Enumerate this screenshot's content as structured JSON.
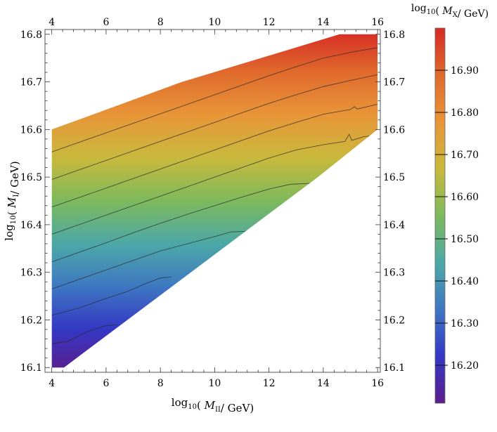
{
  "chart_data": {
    "type": "heatmap",
    "title": "",
    "xlabel": {
      "pre": "log",
      "sub1": "10",
      "mid": "(",
      "var": "M",
      "sub2": "II",
      "post": "/ GeV)"
    },
    "ylabel": {
      "pre": "log",
      "sub1": "10",
      "mid": "(",
      "var": "M",
      "sub2": "I",
      "post": "/ GeV)"
    },
    "colorbar_title": {
      "pre": "log",
      "sub1": "10",
      "mid": "(",
      "var": "M",
      "sub2": "X",
      "post": "/ GeV)"
    },
    "xlim": [
      3.75,
      16.1
    ],
    "ylim": [
      16.09,
      16.81
    ],
    "x_ticks": [
      4,
      6,
      8,
      10,
      12,
      14,
      16
    ],
    "x_tick_labels": [
      "4",
      "6",
      "8",
      "10",
      "12",
      "14",
      "16"
    ],
    "y_ticks": [
      16.1,
      16.2,
      16.3,
      16.4,
      16.5,
      16.6,
      16.7,
      16.8
    ],
    "y_tick_labels": [
      "16.1",
      "16.2",
      "16.3",
      "16.4",
      "16.5",
      "16.6",
      "16.7",
      "16.8"
    ],
    "colorbar_range": [
      16.11,
      17.0
    ],
    "colorbar_ticks": [
      16.2,
      16.3,
      16.4,
      16.5,
      16.6,
      16.7,
      16.8,
      16.9
    ],
    "colorbar_tick_labels": [
      "16.20",
      "16.30",
      "16.40",
      "16.50",
      "16.60",
      "16.70",
      "16.80",
      "16.90"
    ],
    "colorscale": [
      "#5c1e8c",
      "#3437c4",
      "#3e78c2",
      "#4ca8a6",
      "#7db95c",
      "#c8b93c",
      "#e89538",
      "#e06a2c",
      "#d62a26"
    ],
    "region_polygon": [
      [
        4.0,
        16.1
      ],
      [
        4.45,
        16.1
      ],
      [
        13.8,
        16.5
      ],
      [
        16.0,
        16.6
      ],
      [
        16.0,
        16.8
      ],
      [
        14.6,
        16.8
      ],
      [
        8.8,
        16.7
      ],
      [
        4.0,
        16.6
      ]
    ],
    "contours": [
      [
        [
          4.0,
          16.15
        ],
        [
          4.6,
          16.155
        ],
        [
          5.3,
          16.175
        ],
        [
          5.9,
          16.187
        ],
        [
          6.4,
          16.19
        ]
      ],
      [
        [
          4.0,
          16.21
        ],
        [
          5.0,
          16.225
        ],
        [
          6.0,
          16.245
        ],
        [
          6.8,
          16.26
        ],
        [
          7.4,
          16.275
        ],
        [
          8.0,
          16.288
        ],
        [
          8.4,
          16.29
        ]
      ],
      [
        [
          4.0,
          16.265
        ],
        [
          5.0,
          16.285
        ],
        [
          6.0,
          16.305
        ],
        [
          7.0,
          16.325
        ],
        [
          8.0,
          16.345
        ],
        [
          9.0,
          16.36
        ],
        [
          10.0,
          16.375
        ],
        [
          10.6,
          16.385
        ],
        [
          11.2,
          16.386
        ]
      ],
      [
        [
          4.0,
          16.322
        ],
        [
          5.0,
          16.342
        ],
        [
          6.0,
          16.362
        ],
        [
          7.0,
          16.383
        ],
        [
          8.0,
          16.403
        ],
        [
          9.0,
          16.422
        ],
        [
          10.0,
          16.44
        ],
        [
          11.0,
          16.458
        ],
        [
          12.0,
          16.475
        ],
        [
          12.8,
          16.485
        ],
        [
          13.6,
          16.487
        ]
      ],
      [
        [
          4.0,
          16.38
        ],
        [
          5.0,
          16.4
        ],
        [
          6.0,
          16.42
        ],
        [
          7.0,
          16.44
        ],
        [
          8.0,
          16.46
        ],
        [
          9.0,
          16.48
        ],
        [
          10.0,
          16.5
        ],
        [
          11.0,
          16.52
        ],
        [
          12.0,
          16.54
        ],
        [
          13.0,
          16.557
        ],
        [
          14.0,
          16.568
        ],
        [
          14.8,
          16.575
        ],
        [
          14.95,
          16.59
        ],
        [
          15.05,
          16.577
        ],
        [
          15.5,
          16.585
        ],
        [
          16.0,
          16.588
        ]
      ],
      [
        [
          4.0,
          16.437
        ],
        [
          5.0,
          16.457
        ],
        [
          6.0,
          16.477
        ],
        [
          7.0,
          16.497
        ],
        [
          8.0,
          16.517
        ],
        [
          9.0,
          16.537
        ],
        [
          10.0,
          16.557
        ],
        [
          11.0,
          16.577
        ],
        [
          12.0,
          16.597
        ],
        [
          13.0,
          16.615
        ],
        [
          14.0,
          16.632
        ],
        [
          15.0,
          16.642
        ],
        [
          15.15,
          16.648
        ],
        [
          15.25,
          16.643
        ],
        [
          16.0,
          16.653
        ]
      ],
      [
        [
          4.0,
          16.495
        ],
        [
          5.0,
          16.515
        ],
        [
          6.0,
          16.535
        ],
        [
          7.0,
          16.555
        ],
        [
          8.0,
          16.575
        ],
        [
          9.0,
          16.595
        ],
        [
          10.0,
          16.615
        ],
        [
          11.0,
          16.635
        ],
        [
          12.0,
          16.655
        ],
        [
          13.0,
          16.673
        ],
        [
          14.0,
          16.69
        ],
        [
          15.0,
          16.703
        ],
        [
          16.0,
          16.715
        ]
      ],
      [
        [
          4.0,
          16.553
        ],
        [
          5.0,
          16.573
        ],
        [
          6.0,
          16.593
        ],
        [
          7.0,
          16.613
        ],
        [
          8.0,
          16.633
        ],
        [
          9.0,
          16.653
        ],
        [
          10.0,
          16.673
        ],
        [
          11.0,
          16.693
        ],
        [
          12.0,
          16.713
        ],
        [
          13.0,
          16.732
        ],
        [
          14.0,
          16.75
        ],
        [
          15.0,
          16.762
        ],
        [
          16.0,
          16.772
        ]
      ]
    ],
    "grid": false,
    "legend": "colorbar-right"
  }
}
